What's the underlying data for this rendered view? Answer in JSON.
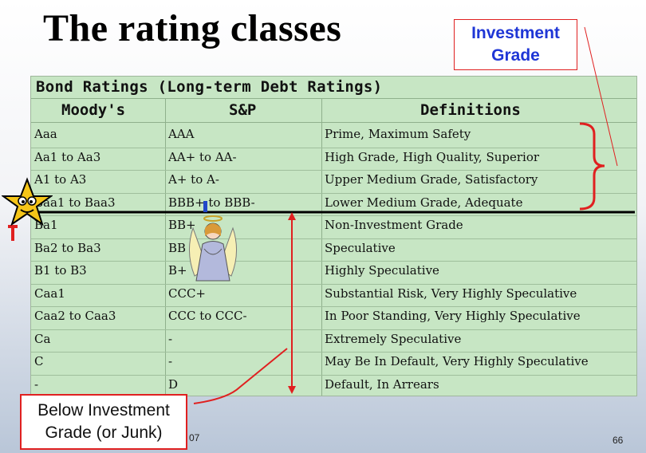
{
  "slide": {
    "title": "The rating classes",
    "page_number": "66",
    "footer_fragment": "07"
  },
  "callouts": {
    "investment_grade_line1": "Investment",
    "investment_grade_line2": "Grade",
    "below_line1": "Below Investment",
    "below_line2": "Grade (or Junk)"
  },
  "table": {
    "title": "Bond Ratings (Long-term Debt Ratings)",
    "headers": {
      "moodys": "Moody's",
      "sp": "S&P",
      "definitions": "Definitions"
    },
    "rows": [
      {
        "moodys": "Aaa",
        "sp": "AAA",
        "definition": "Prime, Maximum Safety"
      },
      {
        "moodys": "Aa1 to Aa3",
        "sp": "AA+ to AA-",
        "definition": "High Grade, High Quality, Superior"
      },
      {
        "moodys": "A1 to A3",
        "sp": "A+ to A-",
        "definition": "Upper Medium Grade, Satisfactory"
      },
      {
        "moodys": "Baa1 to Baa3",
        "sp": "BBB+ to BBB-",
        "definition": "Lower Medium Grade, Adequate"
      },
      {
        "moodys": "Ba1",
        "sp": "BB+",
        "definition": "Non-Investment Grade"
      },
      {
        "moodys": "Ba2 to Ba3",
        "sp": "BB",
        "definition": "Speculative"
      },
      {
        "moodys": "B1 to B3",
        "sp": "B+",
        "definition": "Highly Speculative"
      },
      {
        "moodys": "Caa1",
        "sp": "CCC+",
        "definition": "Substantial Risk, Very Highly Speculative"
      },
      {
        "moodys": "Caa2 to Caa3",
        "sp": "CCC to CCC-",
        "definition": "In Poor Standing, Very Highly Speculative"
      },
      {
        "moodys": "Ca",
        "sp": "-",
        "definition": "Extremely Speculative"
      },
      {
        "moodys": "C",
        "sp": "-",
        "definition": "May Be In Default, Very Highly Speculative"
      },
      {
        "moodys": "-",
        "sp": "D",
        "definition": "Default, In Arrears"
      }
    ]
  },
  "colors": {
    "accent_red": "#e02020",
    "accent_blue": "#1f36d6",
    "table_bg": "#c7e6c4"
  },
  "icons": {
    "star": "star-mascot-icon",
    "angel": "angel-illustration-icon"
  }
}
